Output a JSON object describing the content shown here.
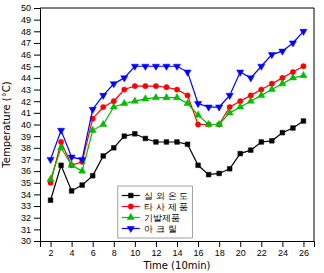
{
  "chart_data": {
    "type": "line",
    "x": [
      2,
      3,
      4,
      5,
      6,
      7,
      8,
      9,
      10,
      11,
      12,
      13,
      14,
      15,
      16,
      17,
      18,
      19,
      20,
      21,
      22,
      23,
      24,
      25,
      26
    ],
    "series": [
      {
        "name": "실 외 온 도",
        "color": "#000000",
        "marker": "square",
        "values": [
          33.5,
          36.5,
          34.3,
          34.8,
          35.6,
          37.3,
          38.0,
          39.0,
          39.2,
          38.8,
          38.5,
          38.5,
          38.5,
          38.3,
          36.5,
          35.7,
          35.8,
          36.2,
          37.5,
          37.8,
          38.5,
          38.6,
          39.3,
          39.7,
          40.3
        ]
      },
      {
        "name": "타 사 제 품",
        "color": "#ff0000",
        "marker": "circle",
        "values": [
          35.0,
          38.5,
          36.5,
          36.8,
          40.5,
          41.5,
          42.0,
          43.0,
          43.3,
          43.3,
          43.3,
          43.2,
          43.0,
          42.5,
          40.0,
          40.0,
          40.0,
          41.5,
          42.0,
          42.5,
          43.0,
          43.5,
          44.0,
          44.5,
          45.0
        ]
      },
      {
        "name": "기발제품",
        "color": "#00bb00",
        "marker": "triangle-up",
        "values": [
          35.3,
          38.0,
          36.5,
          36.0,
          39.5,
          40.0,
          41.5,
          41.8,
          42.0,
          42.2,
          42.3,
          42.3,
          42.3,
          41.8,
          40.8,
          40.0,
          40.0,
          41.0,
          41.5,
          42.0,
          42.5,
          43.0,
          43.5,
          44.0,
          44.2
        ]
      },
      {
        "name": "아 크 릴",
        "color": "#0000ff",
        "marker": "triangle-down",
        "values": [
          37.0,
          39.5,
          37.2,
          37.0,
          41.3,
          42.5,
          43.5,
          44.0,
          45.0,
          45.0,
          45.0,
          45.0,
          45.0,
          44.5,
          41.8,
          41.5,
          41.5,
          42.5,
          44.5,
          44.0,
          45.0,
          46.0,
          46.3,
          47.0,
          48.0
        ]
      }
    ],
    "xlabel": "Time (10min)",
    "ylabel": "Temperature (°C)",
    "xlim": [
      1,
      27
    ],
    "ylim": [
      30,
      50
    ],
    "xticks": [
      2,
      4,
      6,
      8,
      10,
      12,
      14,
      16,
      18,
      20,
      22,
      24,
      26
    ],
    "yticks": [
      30,
      31,
      32,
      33,
      34,
      35,
      36,
      37,
      38,
      39,
      40,
      41,
      42,
      43,
      44,
      45,
      46,
      47,
      48,
      49,
      50
    ],
    "legend": "bottom"
  }
}
